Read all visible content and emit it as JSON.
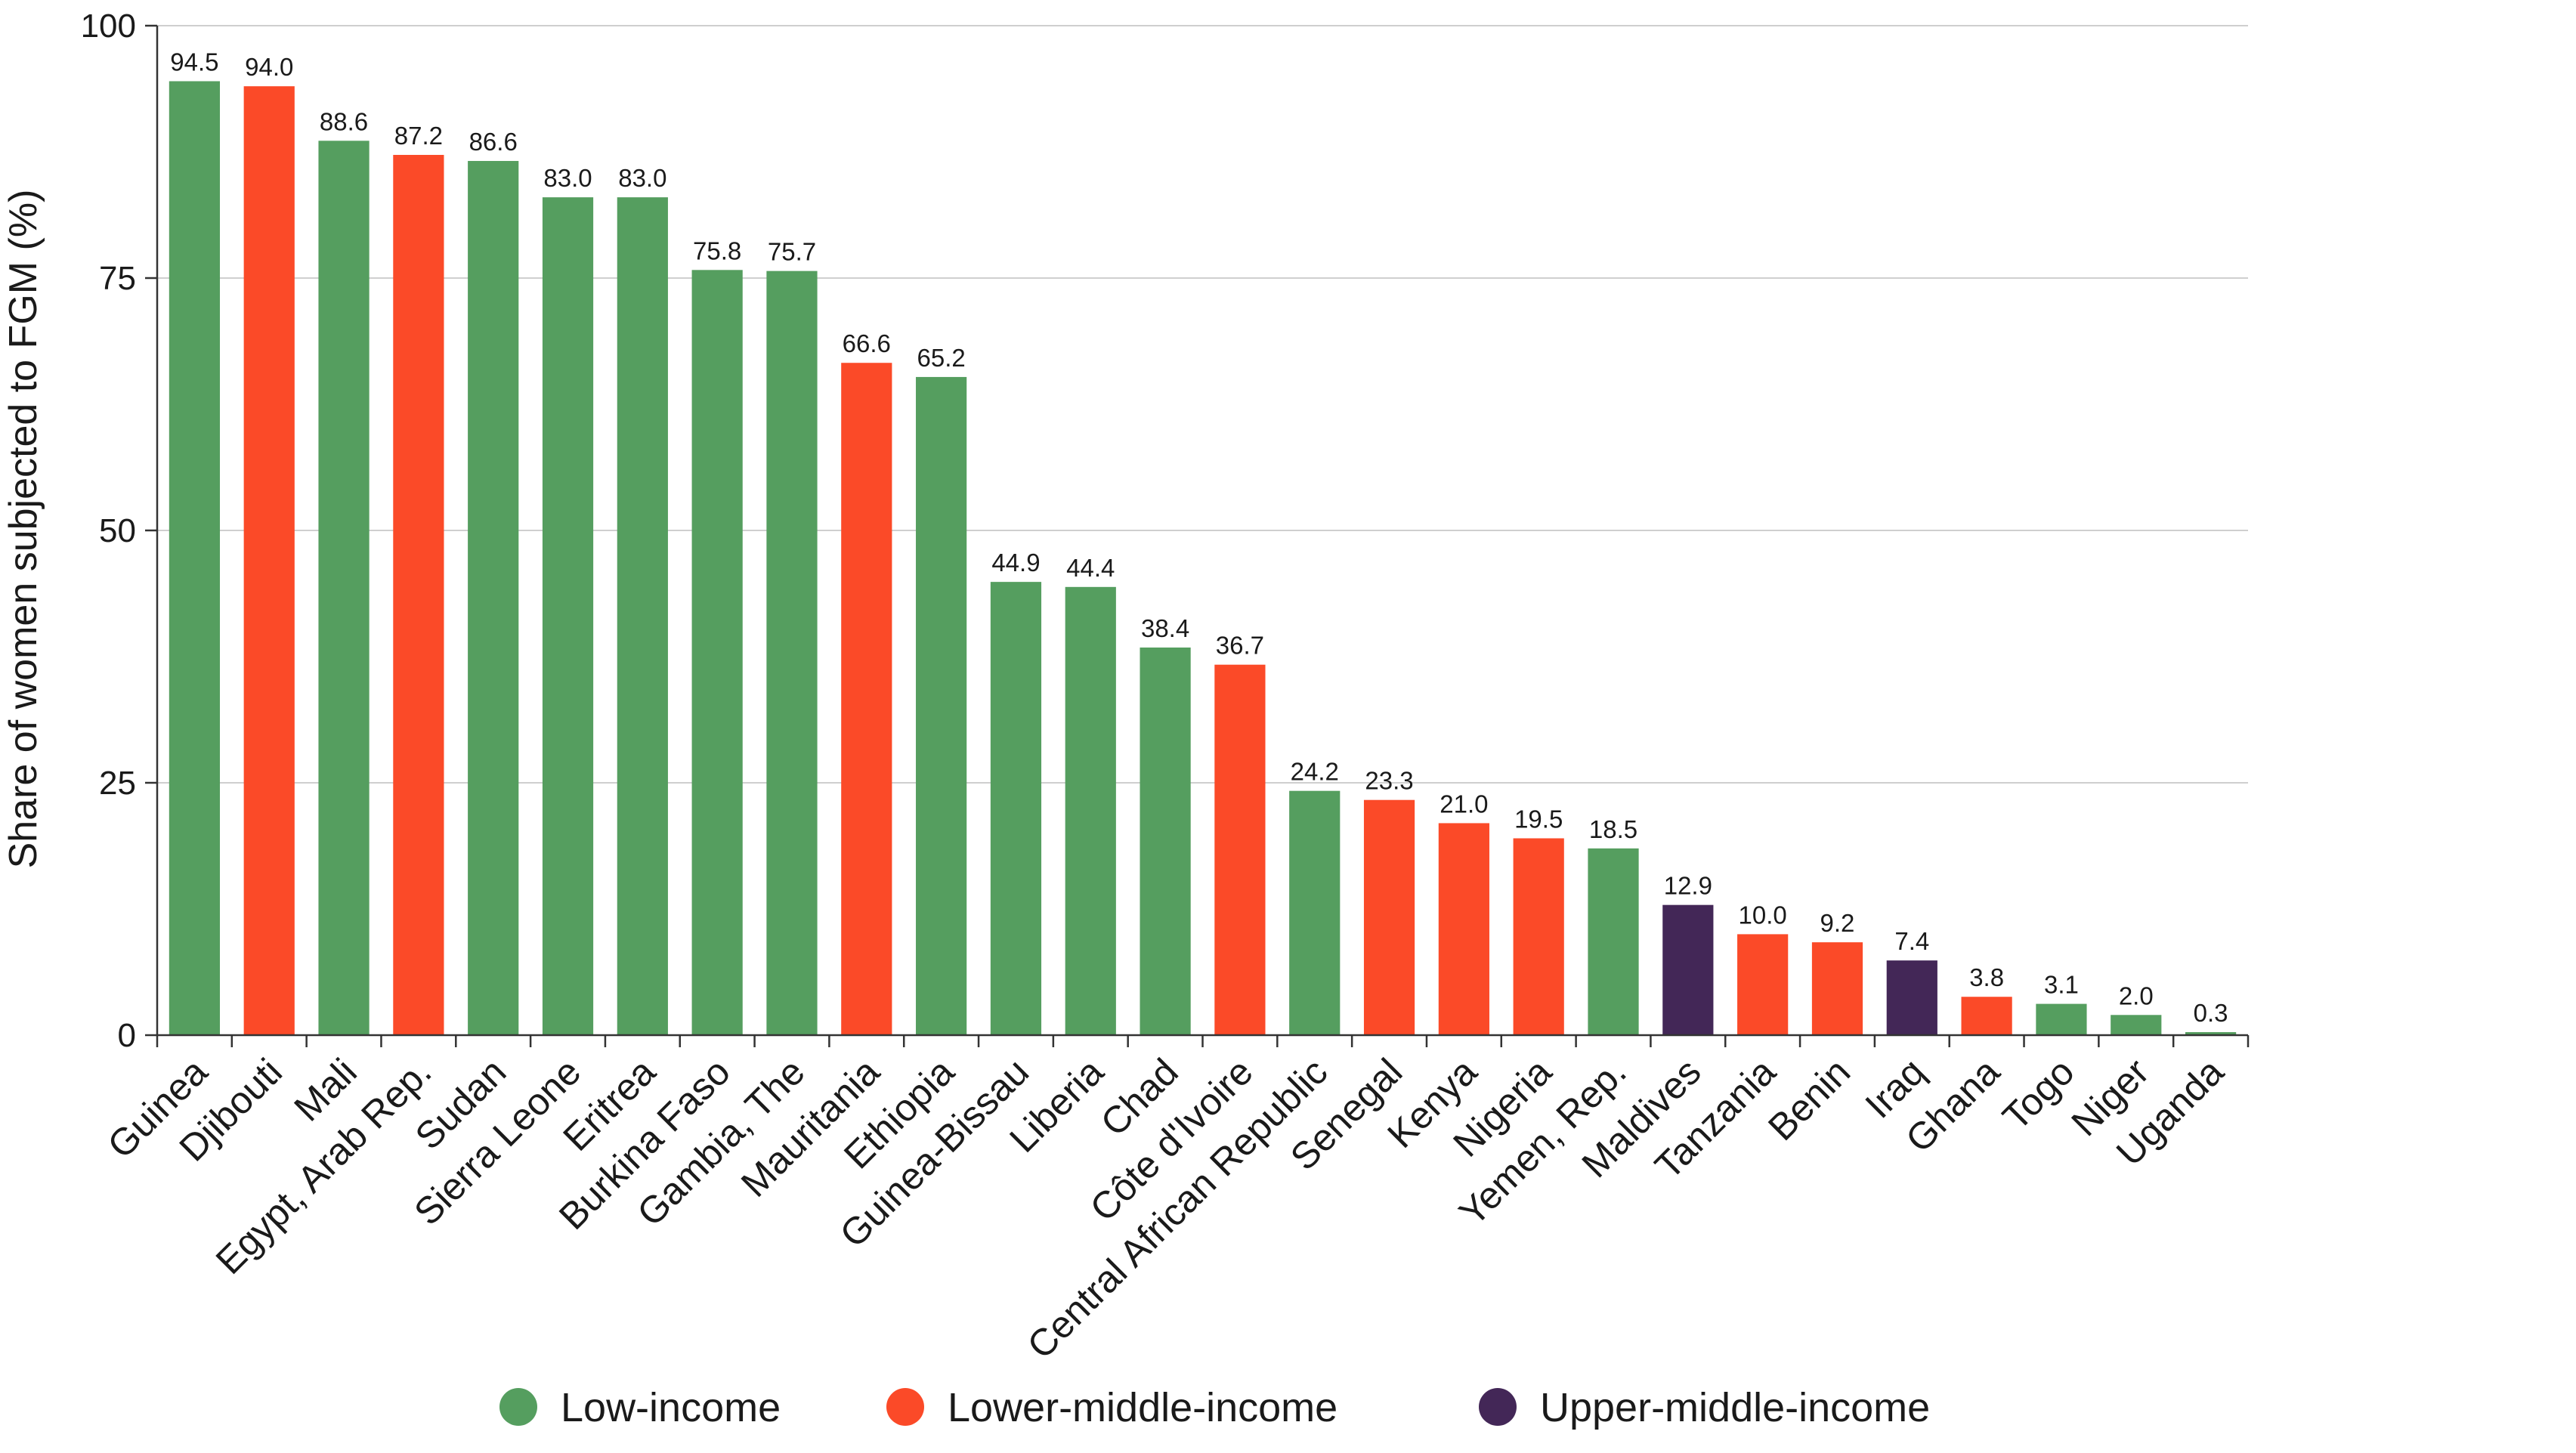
{
  "chart_data": {
    "type": "bar",
    "title": "",
    "xlabel": "",
    "ylabel": "Share of women subjected to FGM (%)",
    "ylim": [
      0,
      100
    ],
    "yticks": [
      0,
      25,
      50,
      75,
      100
    ],
    "grid": true,
    "legend_position": "bottom",
    "categories": [
      "Guinea",
      "Djibouti",
      "Mali",
      "Egypt, Arab Rep.",
      "Sudan",
      "Sierra Leone",
      "Eritrea",
      "Burkina Faso",
      "Gambia, The",
      "Mauritania",
      "Ethiopia",
      "Guinea-Bissau",
      "Liberia",
      "Chad",
      "Côte d'Ivoire",
      "Central African Republic",
      "Senegal",
      "Kenya",
      "Nigeria",
      "Yemen, Rep.",
      "Maldives",
      "Tanzania",
      "Benin",
      "Iraq",
      "Ghana",
      "Togo",
      "Niger",
      "Uganda"
    ],
    "values": [
      94.5,
      94.0,
      88.6,
      87.2,
      86.6,
      83.0,
      83.0,
      75.8,
      75.7,
      66.6,
      65.2,
      44.9,
      44.4,
      38.4,
      36.7,
      24.2,
      23.3,
      21.0,
      19.5,
      18.5,
      12.9,
      10.0,
      9.2,
      7.4,
      3.8,
      3.1,
      2.0,
      0.3
    ],
    "labels": [
      "94.5",
      "94.0",
      "88.6",
      "87.2",
      "86.6",
      "83.0",
      "83.0",
      "75.8",
      "75.7",
      "66.6",
      "65.2",
      "44.9",
      "44.4",
      "38.4",
      "36.7",
      "24.2",
      "23.3",
      "21.0",
      "19.5",
      "18.5",
      "12.9",
      "10.0",
      "9.2",
      "7.4",
      "3.8",
      "3.1",
      "2.0",
      "0.3"
    ],
    "groups": [
      "Low-income",
      "Lower-middle-income",
      "Low-income",
      "Lower-middle-income",
      "Low-income",
      "Low-income",
      "Low-income",
      "Low-income",
      "Low-income",
      "Lower-middle-income",
      "Low-income",
      "Low-income",
      "Low-income",
      "Low-income",
      "Lower-middle-income",
      "Low-income",
      "Lower-middle-income",
      "Lower-middle-income",
      "Lower-middle-income",
      "Low-income",
      "Upper-middle-income",
      "Lower-middle-income",
      "Lower-middle-income",
      "Upper-middle-income",
      "Lower-middle-income",
      "Low-income",
      "Low-income",
      "Low-income"
    ],
    "legend": [
      {
        "name": "Low-income",
        "color": "#559e5f"
      },
      {
        "name": "Lower-middle-income",
        "color": "#fb4a28"
      },
      {
        "name": "Upper-middle-income",
        "color": "#432757"
      }
    ]
  }
}
